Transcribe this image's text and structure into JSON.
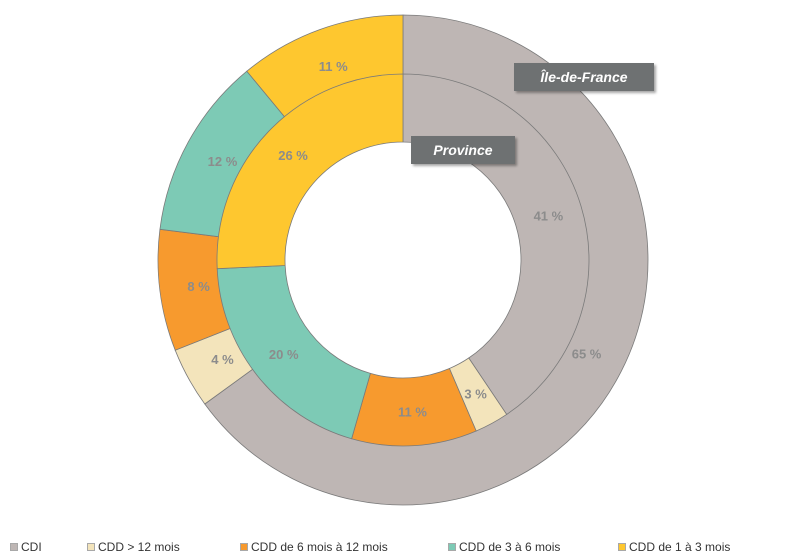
{
  "chart_data": {
    "type": "pie",
    "variant": "double-donut",
    "categories": [
      "CDI",
      "CDD > 12 mois",
      "CDD de 6 mois à 12 mois",
      "CDD de 3 à 6 mois",
      "CDD de 1 à 3 mois"
    ],
    "colors": [
      "#beb6b4",
      "#f3e4bb",
      "#f79a2e",
      "#7dcab5",
      "#fec72f"
    ],
    "series": [
      {
        "name": "Île-de-France",
        "ring": "outer",
        "values": [
          65,
          4,
          8,
          12,
          11
        ],
        "labels": [
          "65 %",
          "4 %",
          "8 %",
          "12 %",
          "11 %"
        ]
      },
      {
        "name": "Province",
        "ring": "inner",
        "values": [
          41,
          3,
          11,
          20,
          26
        ],
        "labels": [
          "41 %",
          "3 %",
          "11 %",
          "20 %",
          "26 %"
        ]
      }
    ],
    "legend": [
      "CDI",
      "CDD > 12 mois",
      "CDD de 6 mois à 12 mois",
      "CDD de 3 à 6 mois",
      "CDD de 1 à 3 mois"
    ],
    "legend_position": "bottom",
    "start_angle": "12 o'clock",
    "direction": "clockwise"
  }
}
